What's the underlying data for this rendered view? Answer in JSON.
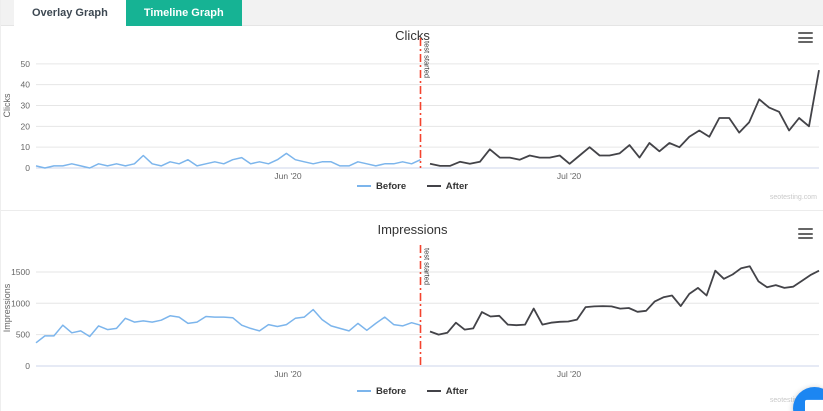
{
  "tabs": [
    {
      "label": "Overlay Graph",
      "active": false
    },
    {
      "label": "Timeline Graph",
      "active": true
    }
  ],
  "colors": {
    "tab_active_bg": "#16b394",
    "before_line": "#7cb5ec",
    "after_line": "#434348",
    "plotline": "#f4442e",
    "gridline": "#e6e6e6",
    "axis_line": "#ccd6eb",
    "chat_bg": "#1c86f2"
  },
  "chat": {
    "icon": "chat-bubble-icon"
  },
  "chart_data": [
    {
      "type": "line",
      "title": "Clicks",
      "ylabel": "Clicks",
      "y_ticks": [
        0,
        10,
        20,
        30,
        40,
        50
      ],
      "ylim": [
        0,
        60
      ],
      "x_tick_labels": [
        "Jun '20",
        "Jul '20"
      ],
      "grid": true,
      "legend_position": "bottom",
      "plotline_label": "test started",
      "watermark": "seotesting.com",
      "series": [
        {
          "name": "Before",
          "color": "#7cb5ec",
          "values": [
            1,
            0,
            1,
            1,
            2,
            1,
            0,
            2,
            1,
            2,
            1,
            2,
            6,
            2,
            1,
            3,
            2,
            4,
            1,
            2,
            3,
            2,
            4,
            5,
            2,
            3,
            2,
            4,
            7,
            4,
            3,
            2,
            3,
            3,
            1,
            1,
            3,
            2,
            1,
            2,
            2,
            3,
            2,
            4
          ]
        },
        {
          "name": "After",
          "color": "#434348",
          "values": [
            2,
            1,
            1,
            3,
            2,
            3,
            9,
            5,
            5,
            4,
            6,
            5,
            5,
            6,
            2,
            6,
            10,
            6,
            6,
            7,
            11,
            5,
            12,
            8,
            12,
            10,
            15,
            18,
            15,
            24,
            24,
            17,
            22,
            33,
            29,
            27,
            18,
            24,
            20,
            47
          ]
        }
      ]
    },
    {
      "type": "line",
      "title": "Impressions",
      "ylabel": "Impressions",
      "y_ticks": [
        0,
        500,
        1000,
        1500
      ],
      "ylim": [
        0,
        1850
      ],
      "x_tick_labels": [
        "Jun '20",
        "Jul '20"
      ],
      "grid": true,
      "legend_position": "bottom",
      "plotline_label": "test started",
      "watermark": "seotesting.com",
      "series": [
        {
          "name": "Before",
          "color": "#7cb5ec",
          "values": [
            370,
            480,
            480,
            650,
            530,
            560,
            470,
            640,
            580,
            600,
            760,
            700,
            720,
            700,
            730,
            800,
            780,
            680,
            700,
            790,
            780,
            780,
            770,
            650,
            600,
            560,
            660,
            630,
            660,
            760,
            780,
            900,
            740,
            640,
            600,
            560,
            680,
            570,
            680,
            780,
            660,
            640,
            690,
            650
          ]
        },
        {
          "name": "After",
          "color": "#434348",
          "values": [
            550,
            500,
            530,
            690,
            580,
            600,
            860,
            790,
            800,
            660,
            650,
            660,
            915,
            660,
            690,
            705,
            710,
            740,
            940,
            950,
            955,
            950,
            915,
            925,
            865,
            880,
            1030,
            1095,
            1125,
            955,
            1150,
            1245,
            1125,
            1520,
            1390,
            1460,
            1560,
            1590,
            1350,
            1255,
            1290,
            1245,
            1265,
            1355,
            1450,
            1520
          ]
        }
      ]
    }
  ]
}
